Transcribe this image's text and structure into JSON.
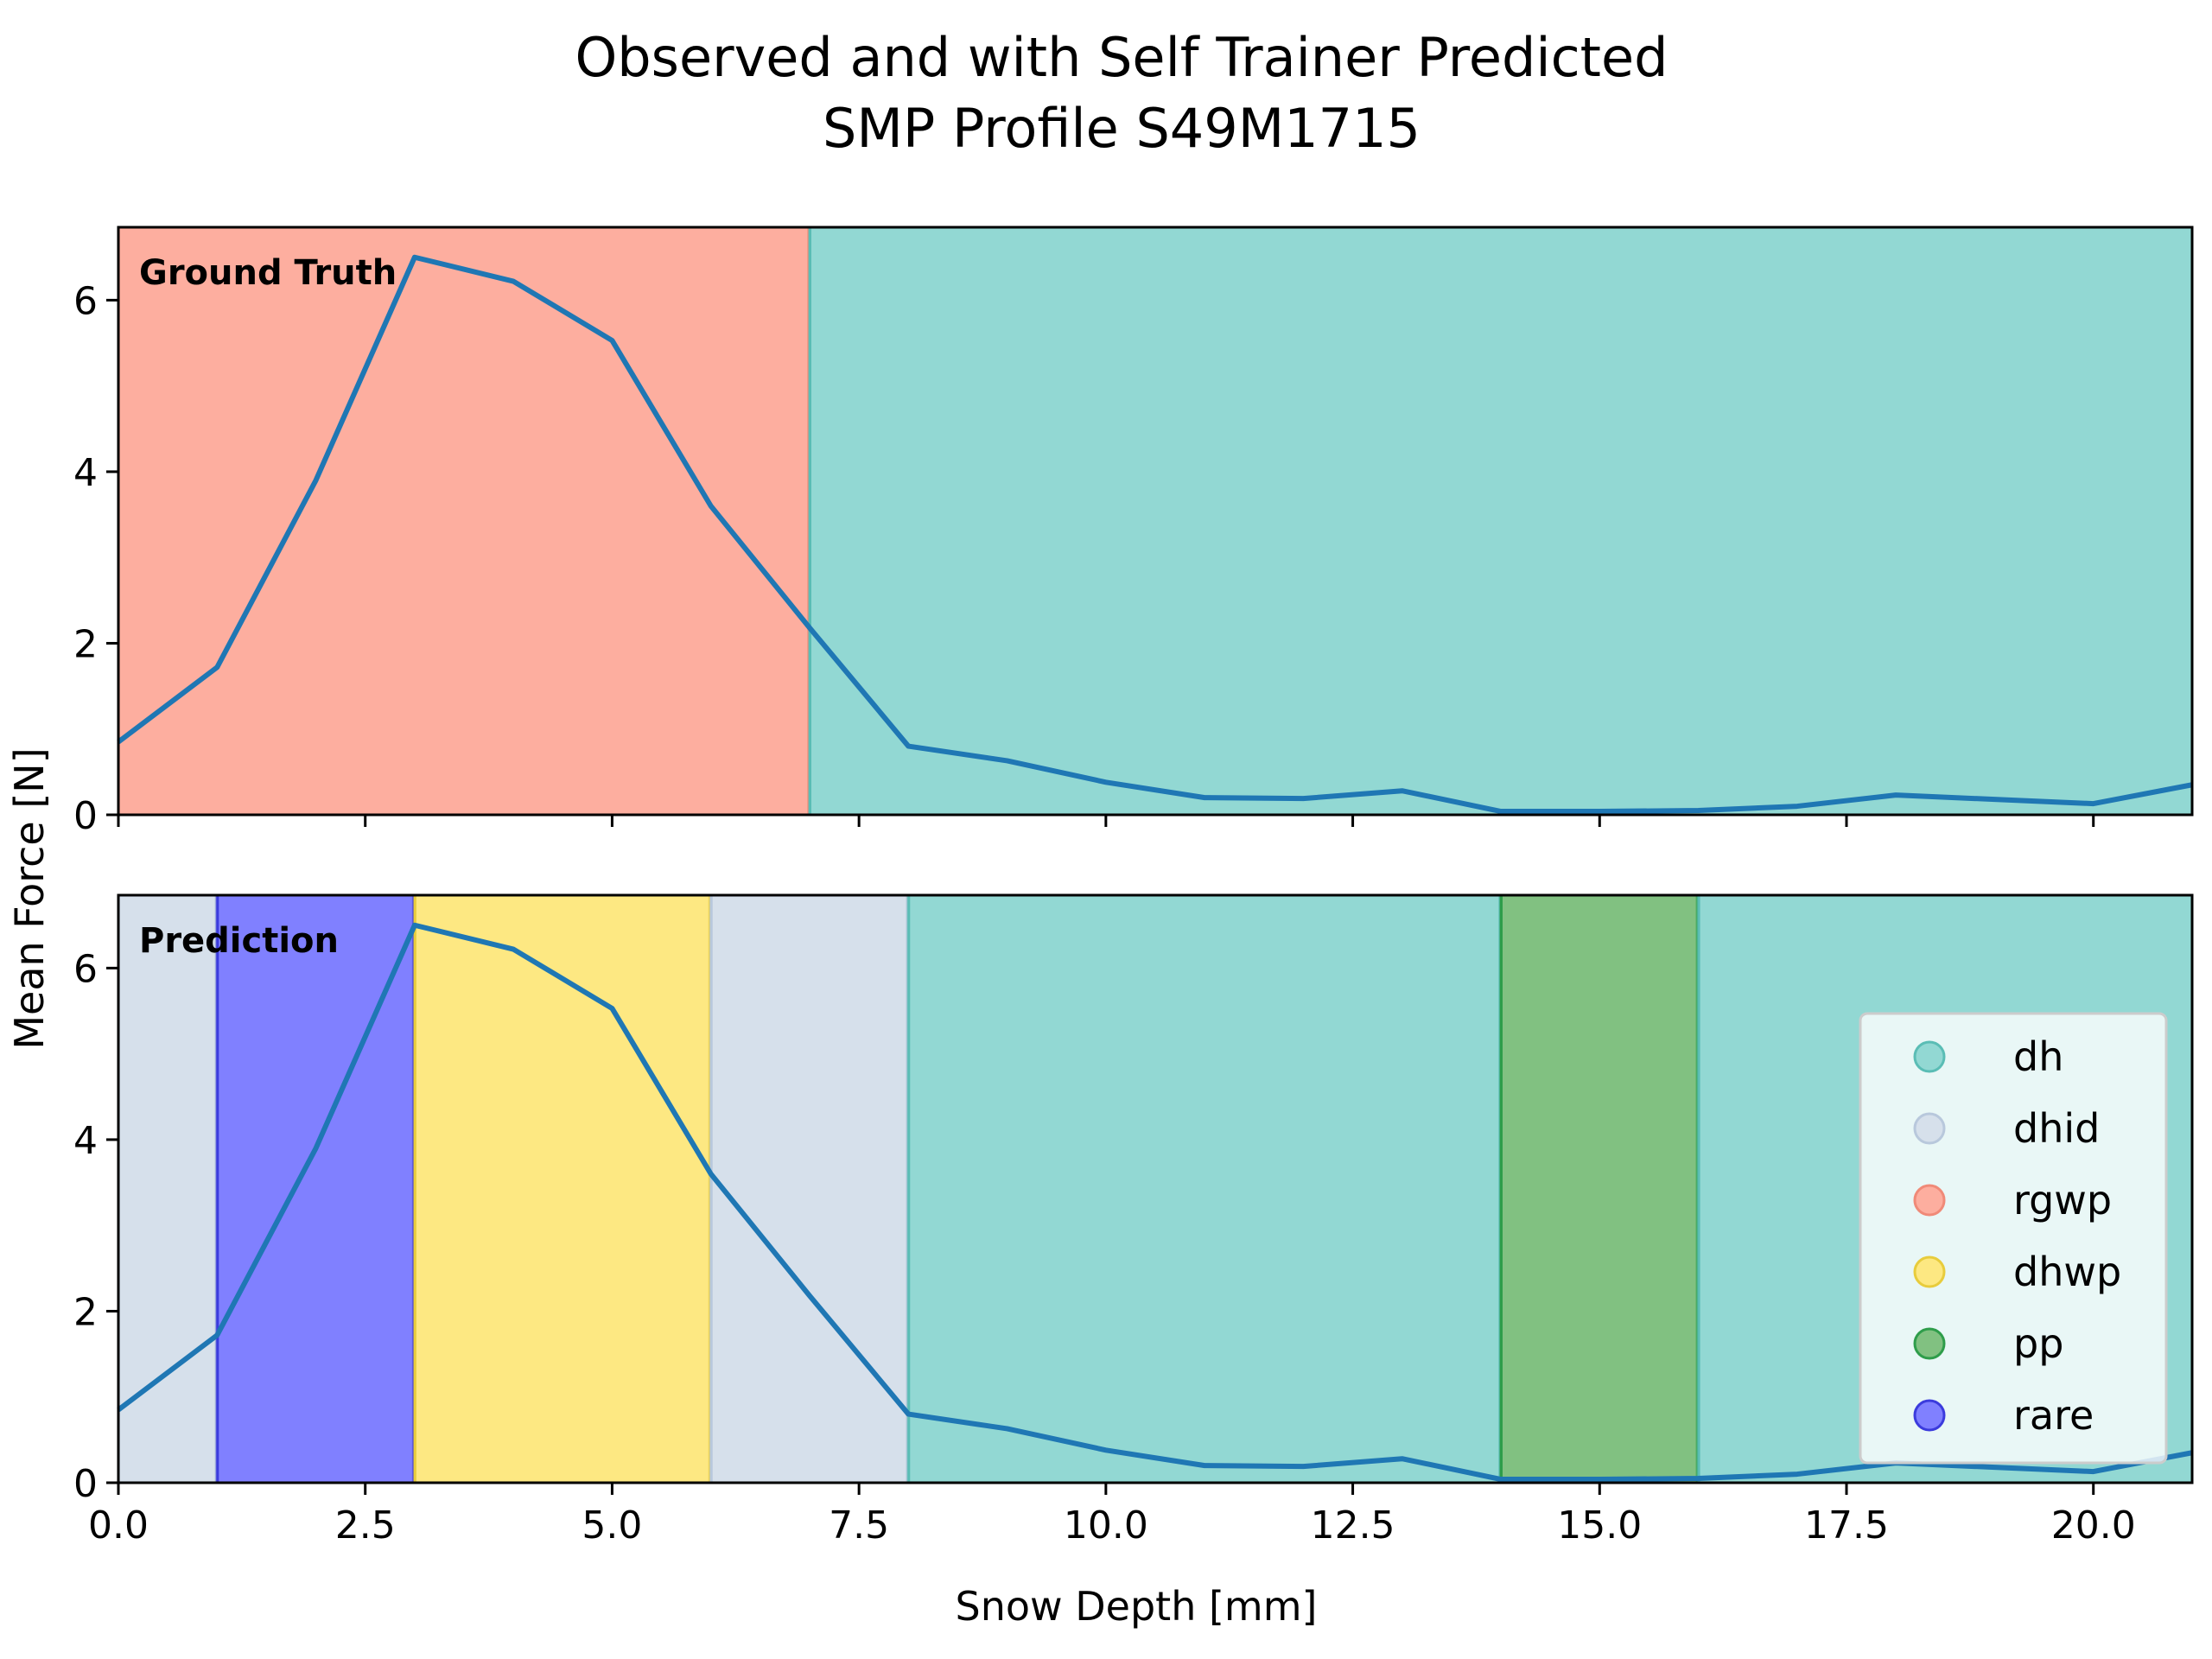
{
  "chart_data": {
    "type": "line",
    "title": [
      "Observed and with Self Trainer Predicted",
      "SMP Profile S49M1715"
    ],
    "xlabel": "Snow Depth [mm]",
    "ylabel": "Mean Force [N]",
    "xlim": [
      0,
      21
    ],
    "ylim": [
      0,
      6.85
    ],
    "x_ticks": [
      0,
      2.5,
      5,
      7.5,
      10,
      12.5,
      15,
      17.5,
      20
    ],
    "x_tick_labels": [
      "0.0",
      "2.5",
      "5.0",
      "7.5",
      "10.0",
      "12.5",
      "15.0",
      "17.5",
      "20.0"
    ],
    "y_ticks": [
      0,
      2,
      4,
      6
    ],
    "y_tick_labels": [
      "0",
      "2",
      "4",
      "6"
    ],
    "grid": false,
    "legend_position": "lower-right, bottom panel",
    "series": [
      {
        "x": [
          0,
          1,
          2,
          3,
          4,
          5,
          6,
          7,
          8,
          9,
          10,
          11,
          12,
          13,
          14,
          15,
          16,
          17,
          18,
          19,
          20,
          21
        ],
        "values": [
          0.85,
          1.72,
          3.9,
          6.5,
          6.22,
          5.53,
          3.6,
          2.18,
          0.8,
          0.63,
          0.38,
          0.2,
          0.19,
          0.28,
          0.04,
          0.04,
          0.05,
          0.1,
          0.23,
          0.18,
          0.13,
          0.35
        ],
        "color": "#1f77b4"
      }
    ],
    "panels": [
      {
        "label": "Ground Truth",
        "segments": [
          {
            "class": "rgwp",
            "x_start": 0,
            "x_end": 7
          },
          {
            "class": "dh",
            "x_start": 7,
            "x_end": 21
          }
        ]
      },
      {
        "label": "Prediction",
        "segments": [
          {
            "class": "dhid",
            "x_start": 0,
            "x_end": 1
          },
          {
            "class": "rare",
            "x_start": 1,
            "x_end": 3
          },
          {
            "class": "dhwp",
            "x_start": 3,
            "x_end": 6
          },
          {
            "class": "dhid",
            "x_start": 6,
            "x_end": 8
          },
          {
            "class": "dh",
            "x_start": 8,
            "x_end": 14
          },
          {
            "class": "pp",
            "x_start": 14,
            "x_end": 16
          },
          {
            "class": "dh",
            "x_start": 16,
            "x_end": 21
          }
        ]
      }
    ],
    "legend": [
      {
        "label": "dh",
        "color": "#92d8d3"
      },
      {
        "label": "dhid",
        "color": "#d6e0eb"
      },
      {
        "label": "rgwp",
        "color": "#fdae9f"
      },
      {
        "label": "dhwp",
        "color": "#fde882"
      },
      {
        "label": "pp",
        "color": "#81c181"
      },
      {
        "label": "rare",
        "color": "#8080ff"
      }
    ],
    "class_edge_colors": {
      "dh": "#5abdb5",
      "dhid": "#b8c8dc",
      "rgwp": "#f08a78",
      "dhwp": "#e8cc3c",
      "pp": "#2e9d4a",
      "rare": "#3b3bdd"
    }
  }
}
